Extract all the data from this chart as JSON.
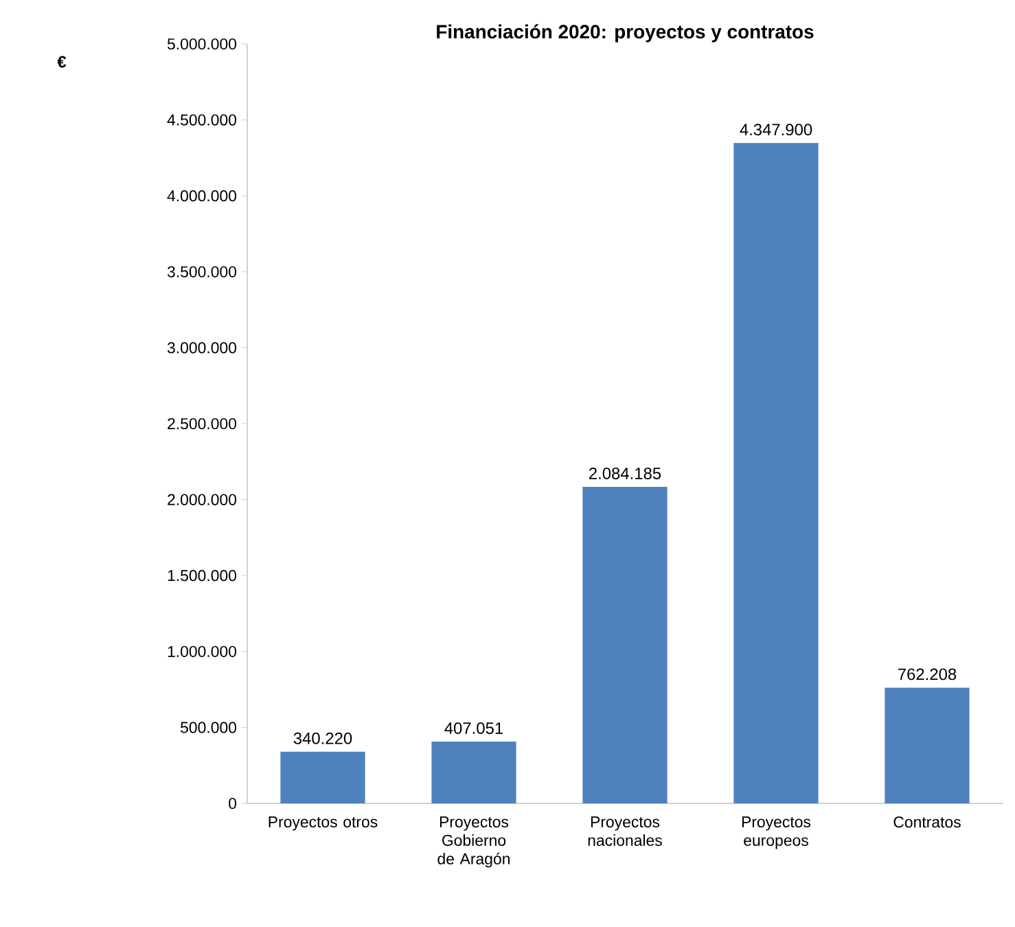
{
  "chart_data": {
    "type": "bar",
    "title": "Financiación 2020: proyectos y contratos",
    "annotations": [
      "€"
    ],
    "categories": [
      "Proyectos otros",
      "Proyectos Gobierno de Aragón",
      "Proyectos nacionales",
      "Proyectos europeos",
      "Contratos"
    ],
    "values": [
      340220,
      407051,
      2084185,
      4347900,
      762208
    ],
    "value_labels": [
      "340.220",
      "407.051",
      "2.084.185",
      "4.347.900",
      "762.208"
    ],
    "color": "#4f81bd",
    "ylim": [
      0,
      5000000
    ],
    "yticks": [
      0,
      {
        "value": 500000,
        "label": "500.000"
      },
      {
        "value": 1000000,
        "label": "1.000.000"
      },
      {
        "value": 1500000,
        "label": "1.500.000"
      },
      {
        "value": 2000000,
        "label": "2.000.000"
      },
      {
        "value": 2500000,
        "label": "2.500.000"
      },
      {
        "value": 3000000,
        "label": "3.000.000"
      },
      {
        "value": 3500000,
        "label": "3.500.000"
      },
      {
        "value": 4000000,
        "label": "4.000.000"
      },
      {
        "value": 4500000,
        "label": "4.500.000"
      },
      {
        "value": 5000000,
        "label": "5.000.000"
      }
    ]
  }
}
